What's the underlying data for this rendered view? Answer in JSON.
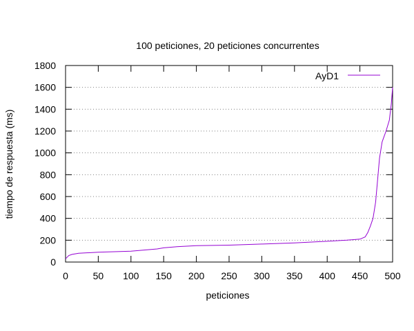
{
  "chart_data": {
    "type": "line",
    "title": "100 peticiones, 20 peticiones concurrentes",
    "xlabel": "peticiones",
    "ylabel": "tiempo de respuesta (ms)",
    "xlim": [
      0,
      500
    ],
    "ylim": [
      0,
      1800
    ],
    "xticks": [
      0,
      50,
      100,
      150,
      200,
      250,
      300,
      350,
      400,
      450,
      500
    ],
    "yticks": [
      0,
      200,
      400,
      600,
      800,
      1000,
      1200,
      1400,
      1600,
      1800
    ],
    "grid": "horizontal-dotted",
    "legend_position": "top-right",
    "series": [
      {
        "name": "AyD1",
        "color": "#9400d3",
        "x": [
          0,
          5,
          10,
          20,
          50,
          100,
          140,
          150,
          170,
          200,
          250,
          300,
          350,
          400,
          430,
          450,
          458,
          462,
          466,
          470,
          474,
          477,
          480,
          484,
          490,
          495,
          498,
          500
        ],
        "y": [
          30,
          60,
          70,
          80,
          90,
          100,
          120,
          130,
          140,
          150,
          155,
          165,
          175,
          190,
          200,
          210,
          230,
          270,
          330,
          400,
          550,
          750,
          950,
          1100,
          1200,
          1300,
          1450,
          1600
        ]
      }
    ]
  }
}
